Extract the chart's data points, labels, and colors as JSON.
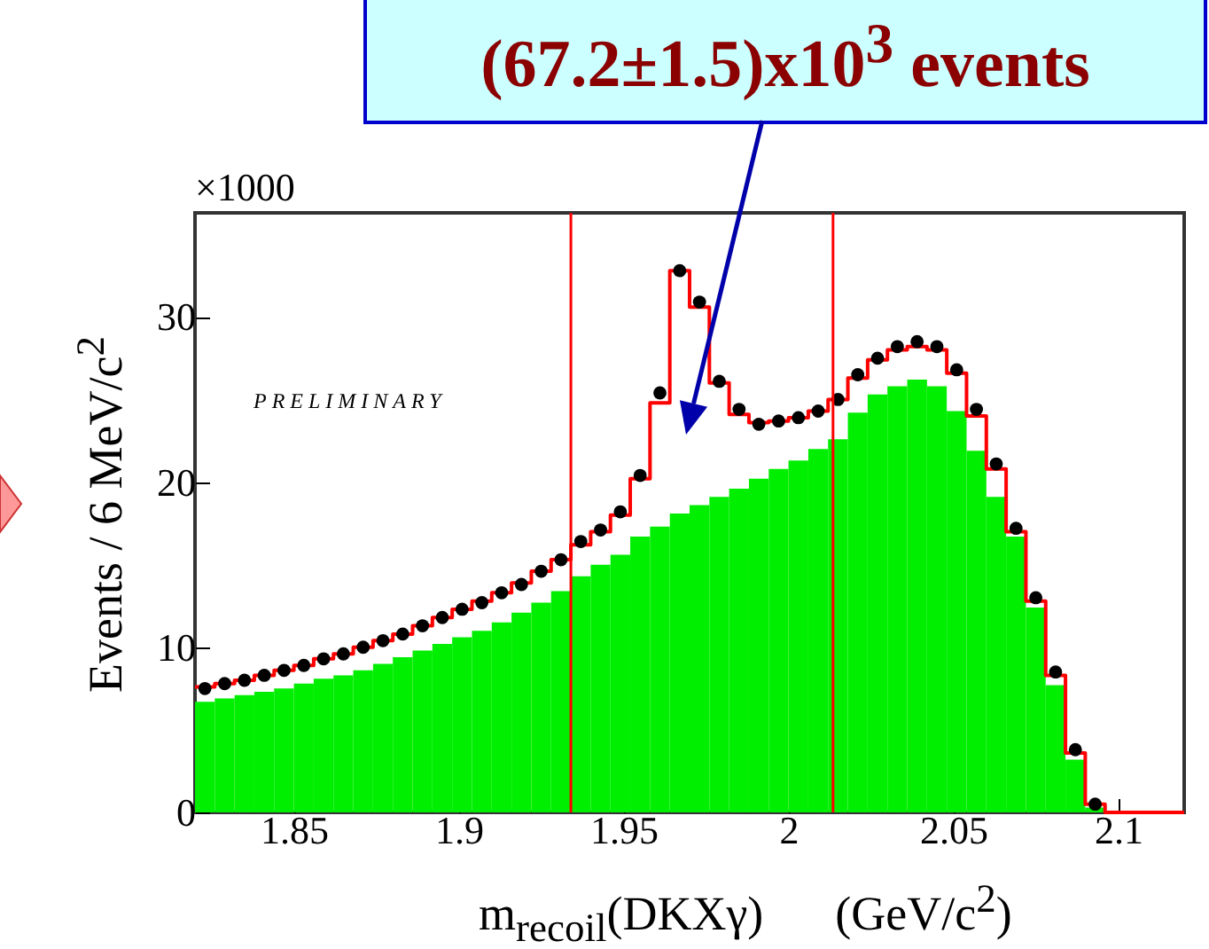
{
  "chart_data": {
    "type": "histogram",
    "xlabel": "m$_{recoil}$(DKXγ)      (GeV/c$^{2}$)",
    "ylabel": "Events / 6 MeV/c$^{2}$",
    "annotations": [
      "(67.2±1.5)x10$^{3}$ events",
      "×1000",
      "PRELIMINARY"
    ],
    "bins": [
      1.82,
      1.826,
      1.832,
      1.838,
      1.844,
      1.85,
      1.856,
      1.862,
      1.868,
      1.874,
      1.88,
      1.886,
      1.892,
      1.898,
      1.904,
      1.91,
      1.916,
      1.922,
      1.928,
      1.934,
      1.94,
      1.946,
      1.952,
      1.958,
      1.964,
      1.97,
      1.976,
      1.982,
      1.988,
      1.994,
      2.0,
      2.006,
      2.012,
      2.018,
      2.024,
      2.03,
      2.036,
      2.042,
      2.048,
      2.054,
      2.06,
      2.066,
      2.072,
      2.078,
      2.084,
      2.09,
      2.096,
      2.102,
      2.108,
      2.114,
      2.12
    ],
    "series": [
      {
        "color": "#00ee00",
        "values": [
          6.7,
          6.9,
          7.1,
          7.3,
          7.5,
          7.8,
          8.1,
          8.3,
          8.6,
          9.0,
          9.4,
          9.8,
          10.2,
          10.6,
          11.0,
          11.5,
          12.1,
          12.7,
          13.4,
          14.3,
          15.0,
          15.6,
          16.7,
          17.3,
          18.1,
          18.6,
          19.1,
          19.6,
          20.2,
          20.8,
          21.3,
          22.0,
          22.6,
          24.2,
          25.3,
          25.8,
          26.2,
          25.8,
          24.3,
          21.9,
          19.1,
          16.7,
          12.4,
          7.7,
          3.2,
          0.3,
          0,
          0,
          0,
          0
        ]
      },
      {
        "type": "step",
        "color": "#ff0000",
        "x": [
          1.82,
          1.826,
          1.832,
          1.838,
          1.844,
          1.85,
          1.856,
          1.862,
          1.868,
          1.874,
          1.88,
          1.886,
          1.892,
          1.898,
          1.904,
          1.91,
          1.916,
          1.922,
          1.928,
          1.934,
          1.94,
          1.946,
          1.952,
          1.958,
          1.964,
          1.97,
          1.976,
          1.982,
          1.988,
          1.994,
          2.0,
          2.006,
          2.012,
          2.018,
          2.024,
          2.03,
          2.036,
          2.042,
          2.048,
          2.054,
          2.06,
          2.066,
          2.072,
          2.078,
          2.084,
          2.09,
          2.096,
          2.102,
          2.108,
          2.114,
          2.12
        ],
        "values": [
          7.6,
          7.8,
          8.0,
          8.3,
          8.6,
          8.9,
          9.3,
          9.6,
          10.0,
          10.4,
          10.8,
          11.3,
          11.8,
          12.3,
          12.8,
          13.3,
          13.9,
          14.6,
          15.3,
          16.2,
          17.0,
          18.0,
          20.2,
          24.8,
          32.8,
          30.6,
          26.0,
          24.1,
          23.6,
          23.7,
          23.9,
          24.3,
          25.0,
          26.3,
          27.4,
          28.0,
          28.2,
          28.0,
          26.6,
          24.0,
          20.8,
          17.0,
          12.8,
          8.3,
          3.6,
          0.5,
          0,
          0,
          0,
          0,
          0
        ]
      },
      {
        "type": "scatter",
        "color": "#000000",
        "marker": "circle",
        "x": [
          1.823,
          1.829,
          1.835,
          1.841,
          1.847,
          1.853,
          1.859,
          1.865,
          1.871,
          1.877,
          1.883,
          1.889,
          1.895,
          1.901,
          1.907,
          1.913,
          1.919,
          1.925,
          1.931,
          1.937,
          1.943,
          1.949,
          1.955,
          1.961,
          1.967,
          1.973,
          1.979,
          1.985,
          1.991,
          1.997,
          2.003,
          2.009,
          2.015,
          2.021,
          2.027,
          2.033,
          2.039,
          2.045,
          2.051,
          2.057,
          2.063,
          2.069,
          2.075,
          2.081,
          2.087,
          2.093
        ],
        "values": [
          7.5,
          7.8,
          8.0,
          8.3,
          8.6,
          8.9,
          9.3,
          9.6,
          10.0,
          10.4,
          10.8,
          11.3,
          11.8,
          12.3,
          12.7,
          13.3,
          13.8,
          14.6,
          15.3,
          16.4,
          17.1,
          18.2,
          20.4,
          25.4,
          32.8,
          30.9,
          26.1,
          24.4,
          23.5,
          23.7,
          23.9,
          24.3,
          25.0,
          26.5,
          27.5,
          28.2,
          28.5,
          28.2,
          26.8,
          24.4,
          21.1,
          17.2,
          13.0,
          8.5,
          3.8,
          0.5
        ]
      }
    ],
    "xlim": [
      1.82,
      2.12
    ],
    "xticks": [
      1.85,
      1.9,
      1.95,
      2,
      2.05,
      2.1
    ],
    "ylim": [
      0,
      36.3
    ],
    "yticks": [
      0,
      10,
      20,
      30
    ],
    "ref_lines": [
      {
        "axis": "x",
        "value": 1.934,
        "color": "#ff0000"
      },
      {
        "axis": "x",
        "value": 2.0135,
        "color": "#ff0000"
      }
    ],
    "grid": false
  }
}
